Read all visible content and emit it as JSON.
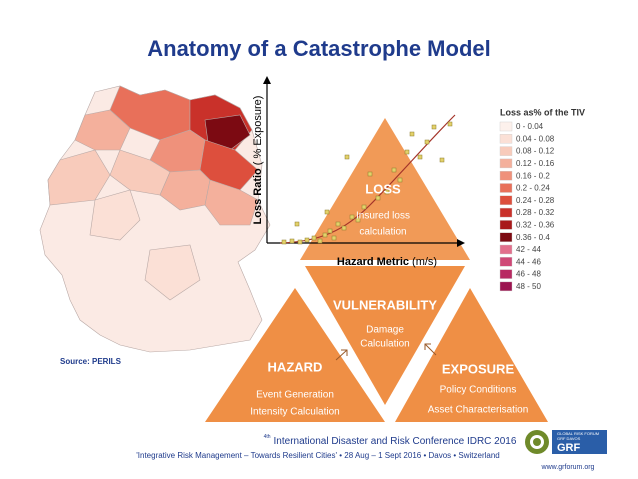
{
  "title": "Anatomy of a Catastrophe Model",
  "map": {
    "source": "Source: PERILS",
    "legend": {
      "title": "Loss as% of the TIV",
      "items": [
        {
          "label": "0 - 0.04",
          "color": "#fdf1ec"
        },
        {
          "label": "0.04 - 0.08",
          "color": "#fbe0d6"
        },
        {
          "label": "0.08 - 0.12",
          "color": "#f8cbbb"
        },
        {
          "label": "0.12 - 0.16",
          "color": "#f4b09c"
        },
        {
          "label": "0.16 - 0.2",
          "color": "#ef917b"
        },
        {
          "label": "0.2 - 0.24",
          "color": "#e8705a"
        },
        {
          "label": "0.24 - 0.28",
          "color": "#dd4f3d"
        },
        {
          "label": "0.28 - 0.32",
          "color": "#c9312a"
        },
        {
          "label": "0.32 - 0.36",
          "color": "#a8191b"
        },
        {
          "label": "0.36 - 0.4",
          "color": "#7c0a12"
        },
        {
          "label": "42 - 44",
          "color": "#e26f8c"
        },
        {
          "label": "44 - 46",
          "color": "#cf4876"
        },
        {
          "label": "46 - 48",
          "color": "#b82a62"
        },
        {
          "label": "48 - 50",
          "color": "#9c1450"
        }
      ]
    }
  },
  "plot": {
    "y_label_bold": "Loss Ratio",
    "y_label_rest": "( % Exposure)",
    "x_label_bold": "Hazard Metric",
    "x_label_rest": "(m/s)"
  },
  "triangles": {
    "loss": {
      "title": "LOSS",
      "lines": [
        "Insured loss",
        "calculation"
      ]
    },
    "vulnerability": {
      "title": "VULNERABILITY",
      "lines": [
        "Damage",
        "Calculation"
      ]
    },
    "hazard": {
      "title": "HAZARD",
      "lines": [
        "Event Generation",
        "Intensity Calculation"
      ]
    },
    "exposure": {
      "title": "EXPOSURE",
      "lines": [
        "Policy Conditions",
        "Asset Characterisation"
      ]
    }
  },
  "footer": {
    "superscript": "4th",
    "conference": "International Disaster and Risk Conference IDRC 2016",
    "tagline": "'Integrative Risk Management – Towards Resilient Cities' • 28 Aug – 1 Sept 2016 • Davos • Switzerland",
    "logo": "GRF",
    "logo_caption": [
      "GLOBAL RISK FORUM",
      "GRF DAVOS"
    ],
    "url": "www.grforum.org"
  }
}
